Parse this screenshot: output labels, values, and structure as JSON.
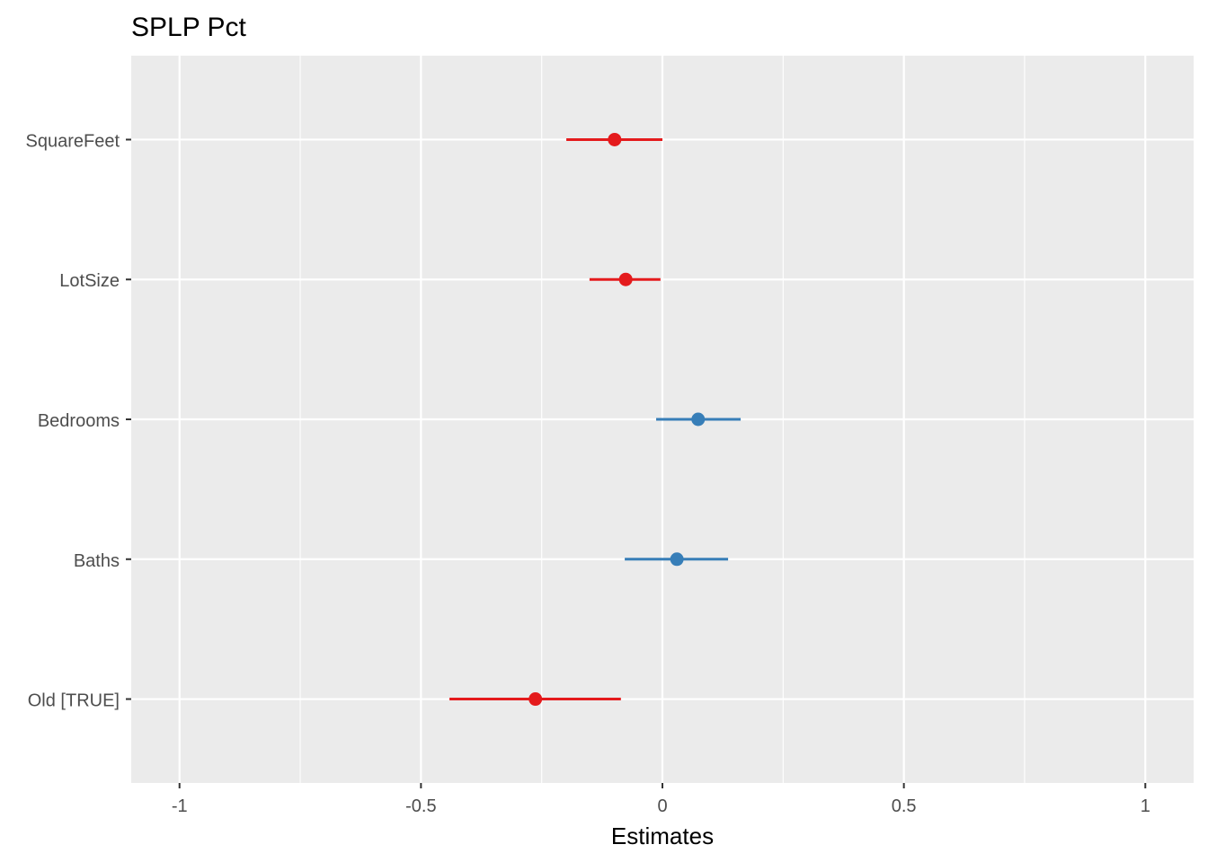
{
  "chart_data": {
    "type": "forest",
    "title": "SPLP Pct",
    "xlabel": "Estimates",
    "ylabel": "",
    "xlim": [
      -1.1,
      1.1
    ],
    "xticks": [
      -1,
      -0.5,
      0,
      0.5,
      1
    ],
    "xtick_labels": [
      "-1",
      "-0.5",
      "0",
      "0.5",
      "1"
    ],
    "grid": true,
    "colors": {
      "negative": "#e41a1c",
      "positive": "#377eb8",
      "panel": "#ebebeb",
      "grid": "#ffffff"
    },
    "terms": [
      {
        "label": "SquareFeet",
        "estimate": -0.099,
        "ci_low": -0.199,
        "ci_high": 0.0
      },
      {
        "label": "LotSize",
        "estimate": -0.076,
        "ci_low": -0.151,
        "ci_high": -0.004
      },
      {
        "label": "Bedrooms",
        "estimate": 0.074,
        "ci_low": -0.013,
        "ci_high": 0.162
      },
      {
        "label": "Baths",
        "estimate": 0.03,
        "ci_low": -0.078,
        "ci_high": 0.136
      },
      {
        "label": "Old [TRUE]",
        "estimate": -0.263,
        "ci_low": -0.441,
        "ci_high": -0.086
      }
    ]
  }
}
